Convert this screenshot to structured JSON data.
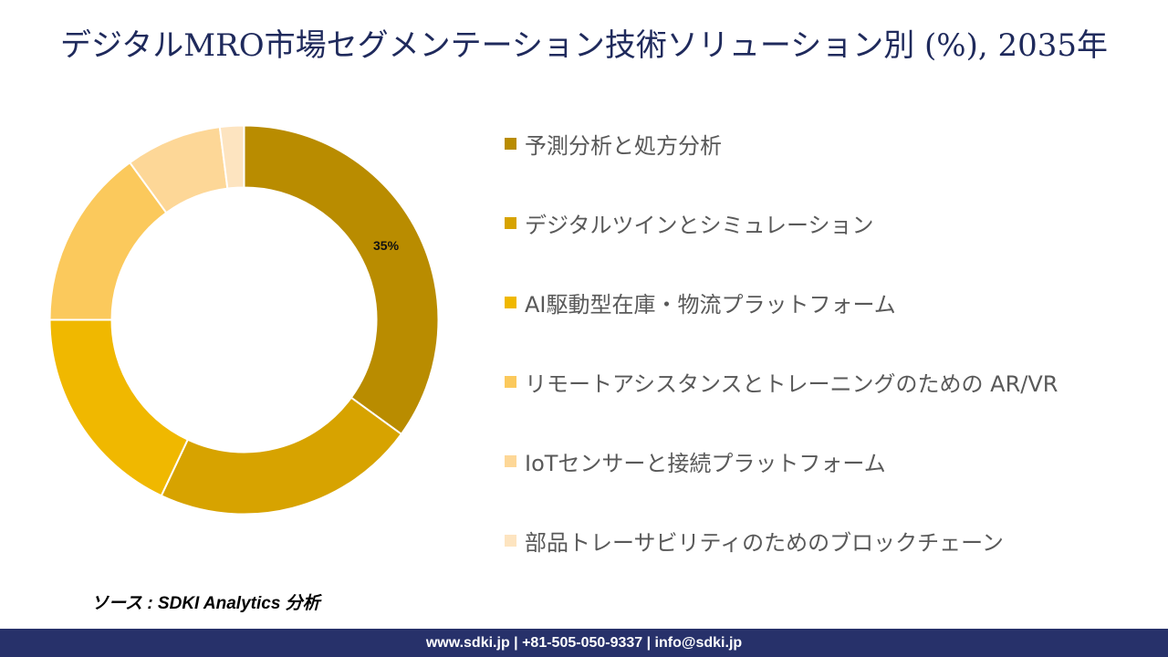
{
  "header": {
    "title": "デジタルMRO市場セグメンテーション技術ソリューション別 (%), 2035年"
  },
  "chart_data": {
    "type": "pie",
    "subtype": "donut",
    "title": "デジタルMRO市場セグメンテーション技術ソリューション別 (%), 2035年",
    "categories": [
      "予測分析と処方分析",
      "デジタルツインとシミュレーション",
      "AI駆動型在庫・物流プラットフォーム",
      "リモートアシスタンスとトレーニングのための AR/VR",
      "IoTセンサーと接続プラットフォーム",
      "部品トレーサビリティのためのブロックチェーン"
    ],
    "values": [
      35,
      22,
      18,
      15,
      8,
      2
    ],
    "colors": [
      "#b98c00",
      "#d7a300",
      "#f0b800",
      "#fbc95c",
      "#fdd797",
      "#fde4c0"
    ],
    "data_labels": [
      {
        "index": 0,
        "text": "35%"
      }
    ],
    "legend_position": "right"
  },
  "legend": {
    "items": [
      {
        "label": "予測分析と処方分析",
        "color": "#b98c00"
      },
      {
        "label": "デジタルツインとシミュレーション",
        "color": "#d7a300"
      },
      {
        "label": "AI駆動型在庫・物流プラットフォーム",
        "color": "#f0b800"
      },
      {
        "label": "リモートアシスタンスとトレーニングのための AR/VR",
        "color": "#fbc95c"
      },
      {
        "label": "IoTセンサーと接続プラットフォーム",
        "color": "#fdd797"
      },
      {
        "label": "部品トレーサビリティのためのブロックチェーン",
        "color": "#fde4c0"
      }
    ]
  },
  "source": {
    "text": "ソース : SDKI Analytics 分析"
  },
  "footer": {
    "text": "www.sdki.jp | +81-505-050-9337 | info@sdki.jp"
  }
}
